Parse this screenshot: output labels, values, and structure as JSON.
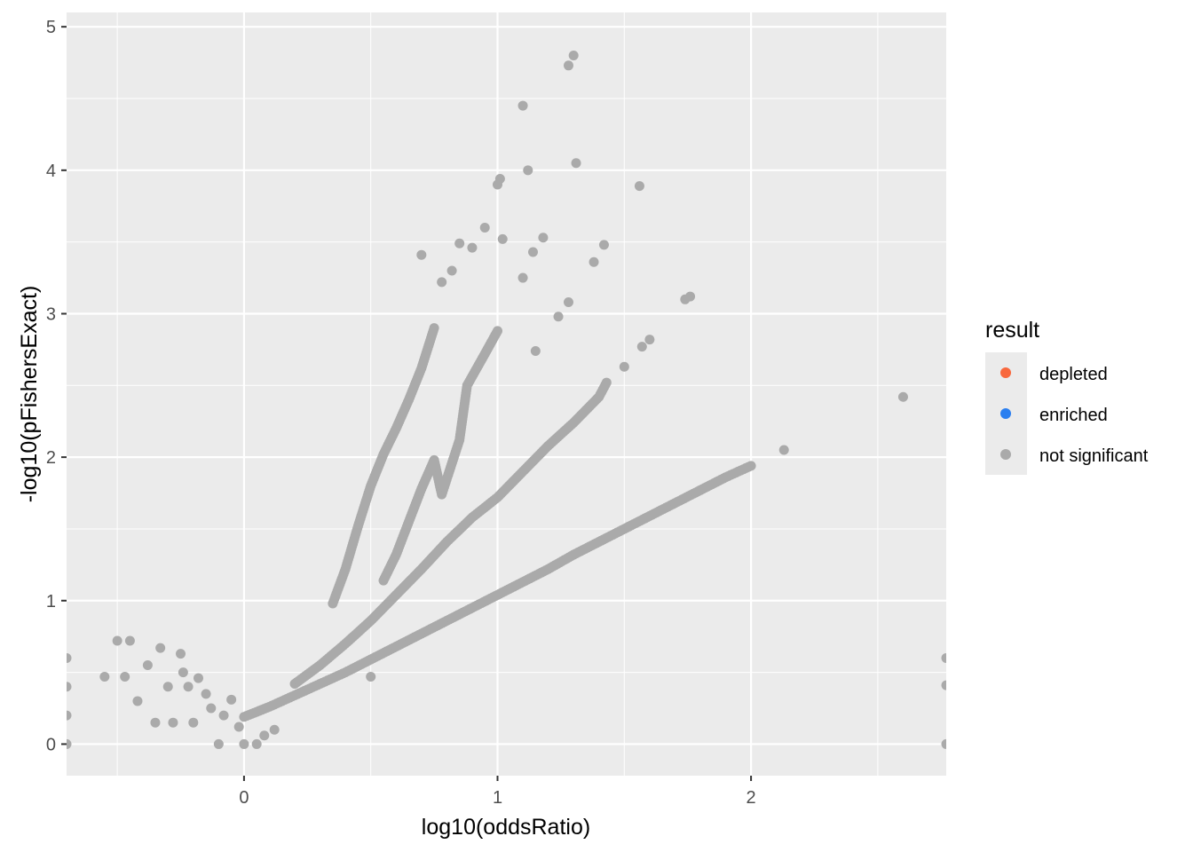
{
  "chart_data": {
    "type": "scatter",
    "xlabel": "log10(oddsRatio)",
    "ylabel": "-log10(pFishersExact)",
    "xlim": [
      -0.7,
      2.77
    ],
    "ylim": [
      -0.22,
      5.1
    ],
    "x_ticks": [
      0,
      1,
      2
    ],
    "x_tick_labels": [
      "0",
      "1",
      "2"
    ],
    "y_ticks": [
      0,
      1,
      2,
      3,
      4,
      5
    ],
    "y_tick_labels": [
      "0",
      "1",
      "2",
      "3",
      "4",
      "5"
    ],
    "grid": true,
    "legend": {
      "title": "result",
      "placement": "right",
      "entries": [
        {
          "label": "depleted",
          "color": "#f8683d"
        },
        {
          "label": "enriched",
          "color": "#2a7ff0"
        },
        {
          "label": "not significant",
          "color": "#aaaaaa"
        }
      ]
    },
    "series": [
      {
        "name": "not significant",
        "color": "#aaaaaa",
        "band_points": [
          {
            "x": 0.0,
            "y": 0.19
          },
          {
            "x": 0.1,
            "y": 0.26
          },
          {
            "x": 0.2,
            "y": 0.34
          },
          {
            "x": 0.3,
            "y": 0.42
          },
          {
            "x": 0.4,
            "y": 0.5
          },
          {
            "x": 0.5,
            "y": 0.59
          },
          {
            "x": 0.6,
            "y": 0.68
          },
          {
            "x": 0.7,
            "y": 0.77
          },
          {
            "x": 0.8,
            "y": 0.86
          },
          {
            "x": 0.9,
            "y": 0.95
          },
          {
            "x": 1.0,
            "y": 1.04
          },
          {
            "x": 1.1,
            "y": 1.13
          },
          {
            "x": 1.2,
            "y": 1.22
          },
          {
            "x": 1.3,
            "y": 1.32
          },
          {
            "x": 1.4,
            "y": 1.41
          },
          {
            "x": 1.5,
            "y": 1.5
          },
          {
            "x": 1.6,
            "y": 1.59
          },
          {
            "x": 1.7,
            "y": 1.68
          },
          {
            "x": 1.8,
            "y": 1.77
          },
          {
            "x": 1.9,
            "y": 1.86
          },
          {
            "x": 2.0,
            "y": 1.94
          },
          {
            "x": 0.2,
            "y": 0.42
          },
          {
            "x": 0.3,
            "y": 0.55
          },
          {
            "x": 0.4,
            "y": 0.7
          },
          {
            "x": 0.5,
            "y": 0.86
          },
          {
            "x": 0.6,
            "y": 1.04
          },
          {
            "x": 0.7,
            "y": 1.22
          },
          {
            "x": 0.8,
            "y": 1.41
          },
          {
            "x": 0.9,
            "y": 1.58
          },
          {
            "x": 1.0,
            "y": 1.72
          },
          {
            "x": 1.1,
            "y": 1.9
          },
          {
            "x": 1.2,
            "y": 2.08
          },
          {
            "x": 1.3,
            "y": 2.24
          },
          {
            "x": 1.4,
            "y": 2.42
          },
          {
            "x": 1.43,
            "y": 2.52
          },
          {
            "x": 0.55,
            "y": 1.14
          },
          {
            "x": 0.6,
            "y": 1.32
          },
          {
            "x": 0.65,
            "y": 1.55
          },
          {
            "x": 0.7,
            "y": 1.78
          },
          {
            "x": 0.75,
            "y": 1.98
          },
          {
            "x": 0.78,
            "y": 1.74
          },
          {
            "x": 0.85,
            "y": 2.12
          },
          {
            "x": 0.88,
            "y": 2.5
          },
          {
            "x": 0.95,
            "y": 2.72
          },
          {
            "x": 1.0,
            "y": 2.88
          },
          {
            "x": 0.35,
            "y": 0.98
          },
          {
            "x": 0.4,
            "y": 1.22
          },
          {
            "x": 0.45,
            "y": 1.52
          },
          {
            "x": 0.5,
            "y": 1.8
          },
          {
            "x": 0.55,
            "y": 2.02
          },
          {
            "x": 0.6,
            "y": 2.2
          },
          {
            "x": 0.65,
            "y": 2.4
          },
          {
            "x": 0.7,
            "y": 2.62
          },
          {
            "x": 0.75,
            "y": 2.9
          }
        ],
        "points": [
          {
            "x": -0.7,
            "y": 0.6
          },
          {
            "x": -0.7,
            "y": 0.4
          },
          {
            "x": -0.7,
            "y": 0.2
          },
          {
            "x": -0.7,
            "y": 0.0
          },
          {
            "x": -0.55,
            "y": 0.47
          },
          {
            "x": -0.5,
            "y": 0.72
          },
          {
            "x": -0.47,
            "y": 0.47
          },
          {
            "x": -0.45,
            "y": 0.72
          },
          {
            "x": -0.42,
            "y": 0.3
          },
          {
            "x": -0.38,
            "y": 0.55
          },
          {
            "x": -0.35,
            "y": 0.15
          },
          {
            "x": -0.33,
            "y": 0.67
          },
          {
            "x": -0.3,
            "y": 0.4
          },
          {
            "x": -0.28,
            "y": 0.15
          },
          {
            "x": -0.25,
            "y": 0.63
          },
          {
            "x": -0.24,
            "y": 0.5
          },
          {
            "x": -0.22,
            "y": 0.4
          },
          {
            "x": -0.2,
            "y": 0.15
          },
          {
            "x": -0.18,
            "y": 0.46
          },
          {
            "x": -0.15,
            "y": 0.35
          },
          {
            "x": -0.13,
            "y": 0.25
          },
          {
            "x": -0.1,
            "y": 0.0
          },
          {
            "x": -0.08,
            "y": 0.2
          },
          {
            "x": -0.05,
            "y": 0.31
          },
          {
            "x": -0.02,
            "y": 0.12
          },
          {
            "x": 0.0,
            "y": 0.0
          },
          {
            "x": 0.05,
            "y": 0.0
          },
          {
            "x": 0.08,
            "y": 0.06
          },
          {
            "x": 0.12,
            "y": 0.1
          },
          {
            "x": 0.5,
            "y": 0.47
          },
          {
            "x": 0.7,
            "y": 3.41
          },
          {
            "x": 0.78,
            "y": 3.22
          },
          {
            "x": 0.82,
            "y": 3.3
          },
          {
            "x": 0.85,
            "y": 3.49
          },
          {
            "x": 0.9,
            "y": 3.46
          },
          {
            "x": 0.95,
            "y": 3.6
          },
          {
            "x": 1.0,
            "y": 3.9
          },
          {
            "x": 1.01,
            "y": 3.94
          },
          {
            "x": 1.02,
            "y": 3.52
          },
          {
            "x": 1.1,
            "y": 4.45
          },
          {
            "x": 1.12,
            "y": 4.0
          },
          {
            "x": 1.1,
            "y": 3.25
          },
          {
            "x": 1.14,
            "y": 3.43
          },
          {
            "x": 1.15,
            "y": 2.74
          },
          {
            "x": 1.18,
            "y": 3.53
          },
          {
            "x": 1.24,
            "y": 2.98
          },
          {
            "x": 1.28,
            "y": 3.08
          },
          {
            "x": 1.28,
            "y": 4.73
          },
          {
            "x": 1.3,
            "y": 4.8
          },
          {
            "x": 1.31,
            "y": 4.05
          },
          {
            "x": 1.38,
            "y": 3.36
          },
          {
            "x": 1.42,
            "y": 3.48
          },
          {
            "x": 1.5,
            "y": 2.63
          },
          {
            "x": 1.56,
            "y": 3.89
          },
          {
            "x": 1.57,
            "y": 2.77
          },
          {
            "x": 1.6,
            "y": 2.82
          },
          {
            "x": 1.74,
            "y": 3.1
          },
          {
            "x": 1.76,
            "y": 3.12
          },
          {
            "x": 2.13,
            "y": 2.05
          },
          {
            "x": 2.6,
            "y": 2.42
          },
          {
            "x": 2.77,
            "y": 0.6
          },
          {
            "x": 2.77,
            "y": 0.41
          },
          {
            "x": 2.77,
            "y": 0.0
          }
        ]
      }
    ]
  }
}
